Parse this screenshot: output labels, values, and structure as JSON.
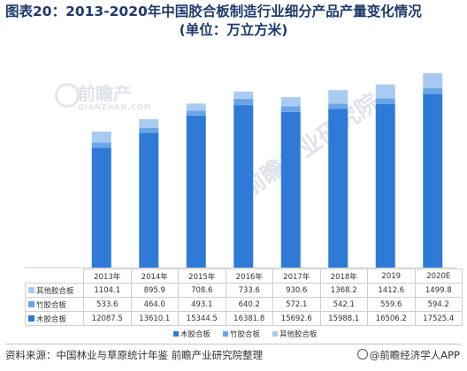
{
  "title": "图表20：2013-2020年中国胶合板制造行业细分产品产量变化情况",
  "subtitle": "(单位：万立方米)",
  "watermark": {
    "main": "前瞻产",
    "small": "QIANZHAN.COM",
    "diag": "前瞻产业研究院"
  },
  "chart_data": {
    "type": "bar",
    "stacked": true,
    "categories": [
      "2013年",
      "2014年",
      "2015年",
      "2016年",
      "2017年",
      "2018年",
      "2019",
      "2020E"
    ],
    "series": [
      {
        "name": "木胶合板",
        "color": "#2e7ad6",
        "values": [
          12087.5,
          13610.1,
          15344.5,
          16381.8,
          15692.6,
          15988.1,
          16506.2,
          17525.4
        ]
      },
      {
        "name": "竹胶合板",
        "color": "#6aa5e8",
        "values": [
          533.6,
          464.0,
          493.1,
          640.2,
          572.1,
          542.1,
          559.6,
          594.2
        ]
      },
      {
        "name": "其他胶合板",
        "color": "#a9cbf2",
        "values": [
          1104.1,
          895.9,
          708.6,
          733.6,
          930.6,
          1368.2,
          1412.6,
          1499.8
        ]
      }
    ],
    "table_rows": [
      {
        "label": "其他胶合板",
        "cells": [
          "1104.1",
          "895.9",
          "708.6",
          "733.6",
          "930.6",
          "1368.2",
          "1412.6",
          "1499.8"
        ]
      },
      {
        "label": "竹胶合板",
        "cells": [
          "533.6",
          "464.0",
          "493.1",
          "640.2",
          "572.1",
          "542.1",
          "559.6",
          "594.2"
        ]
      },
      {
        "label": "木胶合板",
        "cells": [
          "12087.5",
          "13610.1",
          "15344.5",
          "16381.8",
          "15692.6",
          "15988.1",
          "16506.2",
          "17525.4"
        ]
      }
    ],
    "ylim": [
      0,
      22000
    ],
    "grid": false,
    "legend_position": "bottom"
  },
  "footer": {
    "source": "资料来源：中国林业与草原统计年鉴 前瞻产业研究院整理",
    "brand": "@前瞻经济学人APP"
  }
}
